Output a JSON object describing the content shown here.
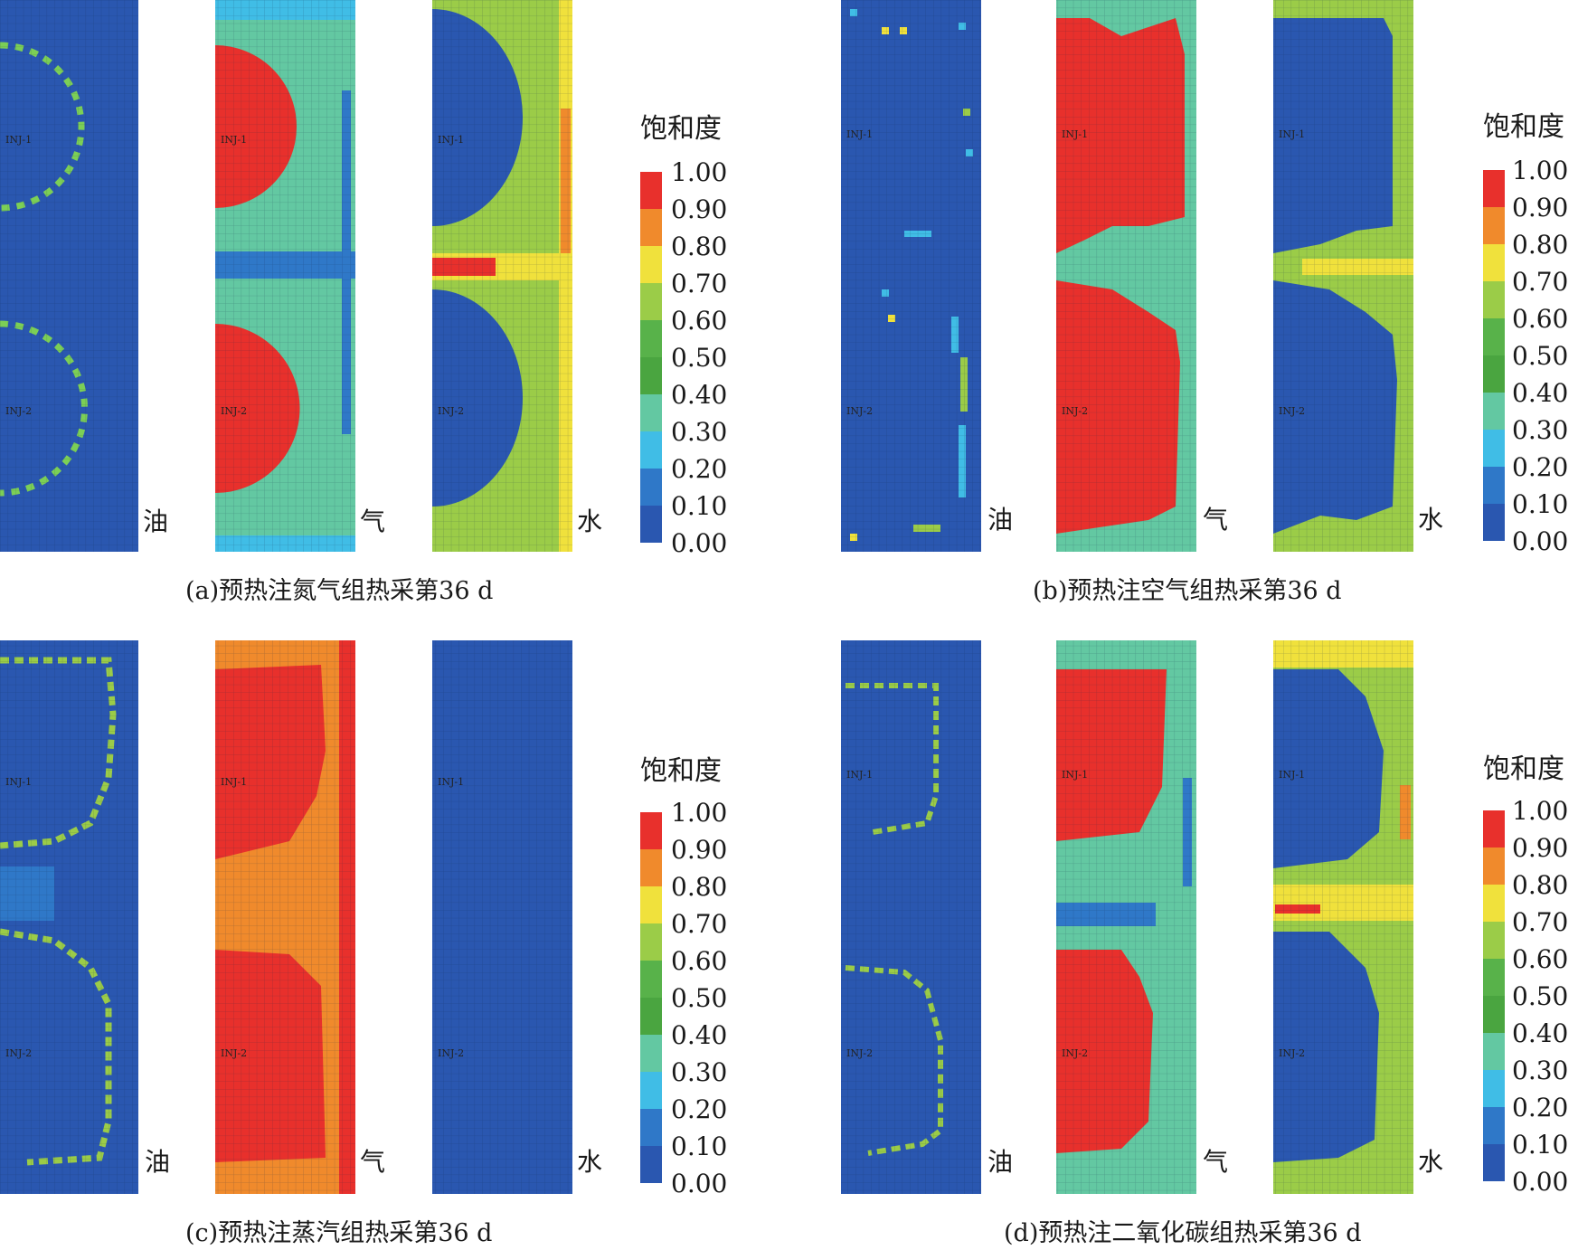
{
  "chart_data": [
    {
      "type": "heatmap",
      "caption": "(a)预热注氮气组热采第36 d",
      "colorbar": {
        "title": "饱和度",
        "ticks": [
          "1.00",
          "0.90",
          "0.80",
          "0.70",
          "0.60",
          "0.50",
          "0.40",
          "0.30",
          "0.20",
          "0.10",
          "0.00"
        ]
      },
      "panels": [
        {
          "label": "油",
          "wells": [
            "INJ-1",
            "INJ-2"
          ]
        },
        {
          "label": "气",
          "wells": [
            "INJ-1",
            "INJ-2"
          ]
        },
        {
          "label": "水",
          "wells": [
            "INJ-1",
            "INJ-2"
          ]
        }
      ]
    },
    {
      "type": "heatmap",
      "caption": "(b)预热注空气组热采第36 d",
      "colorbar": {
        "title": "饱和度",
        "ticks": [
          "1.00",
          "0.90",
          "0.80",
          "0.70",
          "0.60",
          "0.50",
          "0.40",
          "0.30",
          "0.20",
          "0.10",
          "0.00"
        ]
      },
      "panels": [
        {
          "label": "油",
          "wells": [
            "INJ-1",
            "INJ-2"
          ]
        },
        {
          "label": "气",
          "wells": [
            "INJ-1",
            "INJ-2"
          ]
        },
        {
          "label": "水",
          "wells": [
            "INJ-1",
            "INJ-2"
          ]
        }
      ]
    },
    {
      "type": "heatmap",
      "caption": "(c)预热注蒸汽组热采第36 d",
      "colorbar": {
        "title": "饱和度",
        "ticks": [
          "1.00",
          "0.90",
          "0.80",
          "0.70",
          "0.60",
          "0.50",
          "0.40",
          "0.30",
          "0.20",
          "0.10",
          "0.00"
        ]
      },
      "panels": [
        {
          "label": "油",
          "wells": [
            "INJ-1",
            "INJ-2"
          ]
        },
        {
          "label": "气",
          "wells": [
            "INJ-1",
            "INJ-2"
          ]
        },
        {
          "label": "水",
          "wells": [
            "INJ-1",
            "INJ-2"
          ]
        }
      ]
    },
    {
      "type": "heatmap",
      "caption": "(d)预热注二氧化碳组热采第36 d",
      "colorbar": {
        "title": "饱和度",
        "ticks": [
          "1.00",
          "0.90",
          "0.80",
          "0.70",
          "0.60",
          "0.50",
          "0.40",
          "0.30",
          "0.20",
          "0.10",
          "0.00"
        ]
      },
      "panels": [
        {
          "label": "油",
          "wells": [
            "INJ-1",
            "INJ-2"
          ]
        },
        {
          "label": "气",
          "wells": [
            "INJ-1",
            "INJ-2"
          ]
        },
        {
          "label": "水",
          "wells": [
            "INJ-1",
            "INJ-2"
          ]
        }
      ]
    }
  ],
  "colors": {
    "scale": [
      "#2a57b0",
      "#2f78c8",
      "#40bde6",
      "#63c8a2",
      "#58b24a",
      "#9bcc48",
      "#f0e13c",
      "#f08a2c",
      "#e8302c"
    ],
    "grid_line": "#1f3f7a"
  }
}
